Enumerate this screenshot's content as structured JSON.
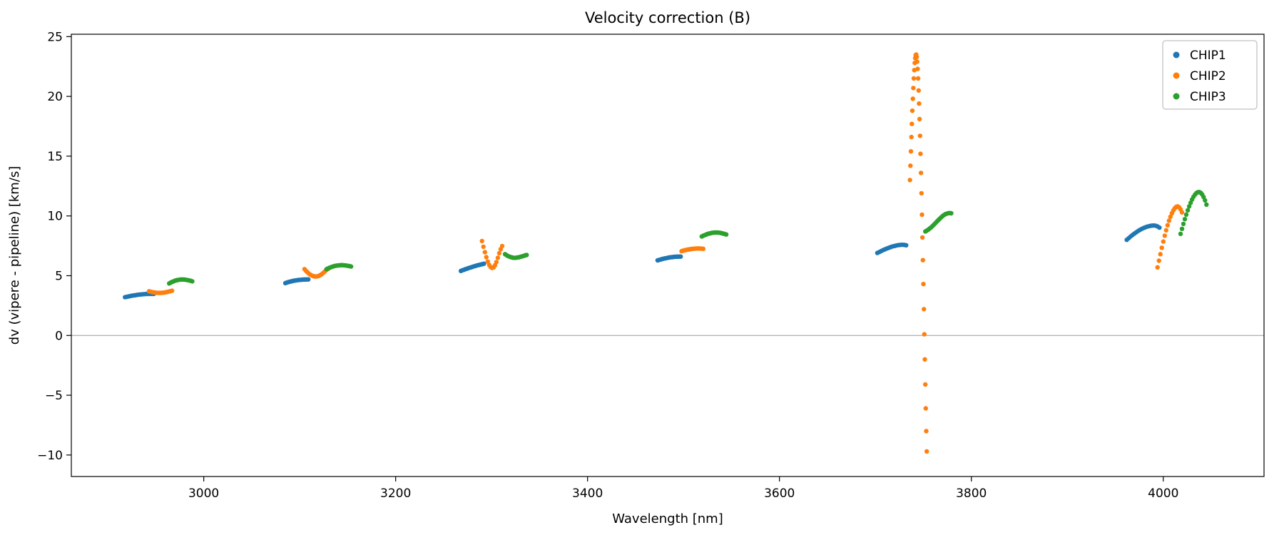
{
  "chart_data": {
    "type": "scatter",
    "title": "Velocity correction (B)",
    "xlabel": "Wavelength [nm]",
    "ylabel": "dv (vipere - pipeline) [km/s]",
    "xlim": [
      2862,
      4105
    ],
    "ylim": [
      -11.8,
      25.2
    ],
    "x_ticks": [
      3000,
      3200,
      3400,
      3600,
      3800,
      4000
    ],
    "y_ticks": [
      -10,
      -5,
      0,
      5,
      10,
      15,
      20,
      25
    ],
    "grid": false,
    "zero_line": 0,
    "zero_line_color": "#9a9a9a",
    "marker_radius": 3.2,
    "legend_position": "upper right",
    "series": [
      {
        "name": "CHIP1",
        "color": "#1f77b4",
        "segments": [
          {
            "x": [
              2918,
              2920,
              2922,
              2924,
              2926,
              2928,
              2930,
              2932,
              2934,
              2936,
              2938,
              2940,
              2942,
              2944,
              2946,
              2948
            ],
            "y": [
              3.2,
              3.24,
              3.27,
              3.31,
              3.34,
              3.36,
              3.39,
              3.41,
              3.43,
              3.44,
              3.46,
              3.47,
              3.47,
              3.48,
              3.48,
              3.48
            ]
          },
          {
            "x": [
              3085,
              3086.5,
              3088,
              3089.5,
              3091,
              3092.5,
              3094,
              3095.5,
              3097,
              3098.5,
              3100,
              3101.5,
              3103,
              3104.5,
              3106,
              3107.5,
              3109
            ],
            "y": [
              4.38,
              4.42,
              4.46,
              4.49,
              4.52,
              4.55,
              4.58,
              4.6,
              4.62,
              4.64,
              4.65,
              4.66,
              4.67,
              4.68,
              4.68,
              4.69,
              4.69
            ]
          },
          {
            "x": [
              3268,
              3269.5,
              3271,
              3272.5,
              3274,
              3275.5,
              3277,
              3278.5,
              3280,
              3281.5,
              3283,
              3284.5,
              3286,
              3287.5,
              3289,
              3290.5,
              3292
            ],
            "y": [
              5.4,
              5.45,
              5.49,
              5.54,
              5.58,
              5.62,
              5.66,
              5.7,
              5.74,
              5.78,
              5.81,
              5.85,
              5.88,
              5.91,
              5.94,
              5.97,
              6.0
            ]
          },
          {
            "x": [
              3473,
              3474.5,
              3476,
              3477.5,
              3479,
              3480.5,
              3482,
              3483.5,
              3485,
              3486.5,
              3488,
              3489.5,
              3491,
              3492.5,
              3494,
              3495.5,
              3497
            ],
            "y": [
              6.28,
              6.32,
              6.35,
              6.39,
              6.42,
              6.45,
              6.47,
              6.5,
              6.52,
              6.54,
              6.55,
              6.57,
              6.58,
              6.59,
              6.59,
              6.6,
              6.6
            ]
          },
          {
            "x": [
              3702,
              3704,
              3706,
              3708,
              3710,
              3712,
              3714,
              3716,
              3718,
              3720,
              3722,
              3724,
              3726,
              3728,
              3730,
              3732
            ],
            "y": [
              6.9,
              6.98,
              7.06,
              7.14,
              7.21,
              7.28,
              7.34,
              7.4,
              7.45,
              7.49,
              7.53,
              7.56,
              7.58,
              7.59,
              7.58,
              7.55
            ]
          },
          {
            "x": [
              3962,
              3964,
              3966,
              3968,
              3970,
              3972,
              3974,
              3976,
              3978,
              3980,
              3982,
              3984,
              3986,
              3988,
              3990,
              3992,
              3994,
              3996
            ],
            "y": [
              8.0,
              8.14,
              8.28,
              8.41,
              8.53,
              8.64,
              8.75,
              8.85,
              8.93,
              9.01,
              9.07,
              9.12,
              9.16,
              9.19,
              9.2,
              9.18,
              9.12,
              9.02
            ]
          }
        ]
      },
      {
        "name": "CHIP2",
        "color": "#ff7f0e",
        "segments": [
          {
            "x": [
              2943,
              2944.5,
              2946,
              2947.5,
              2949,
              2950.5,
              2952,
              2953.5,
              2955,
              2956.5,
              2958,
              2959.5,
              2961,
              2962.5,
              2964,
              2965.5,
              2967
            ],
            "y": [
              3.7,
              3.66,
              3.63,
              3.61,
              3.59,
              3.57,
              3.56,
              3.56,
              3.56,
              3.57,
              3.58,
              3.6,
              3.62,
              3.65,
              3.68,
              3.71,
              3.74
            ]
          },
          {
            "x": [
              3105,
              3106.5,
              3108,
              3109.5,
              3111,
              3112.5,
              3114,
              3115.5,
              3117,
              3118.5,
              3120,
              3121.5,
              3123,
              3124.5,
              3126,
              3127.5,
              3129,
              3130.5
            ],
            "y": [
              5.55,
              5.41,
              5.29,
              5.18,
              5.09,
              5.02,
              4.97,
              4.94,
              4.93,
              4.95,
              4.99,
              5.05,
              5.13,
              5.23,
              5.34,
              5.46,
              5.55,
              5.62
            ]
          },
          {
            "x": [
              3290,
              3291.5,
              3293,
              3294.5,
              3296,
              3297.5,
              3299,
              3300.5,
              3302,
              3303.5,
              3305,
              3306.5,
              3308,
              3309.5,
              3311
            ],
            "y": [
              7.9,
              7.42,
              6.97,
              6.55,
              6.18,
              5.9,
              5.72,
              5.65,
              5.7,
              5.87,
              6.14,
              6.5,
              6.88,
              7.22,
              7.48
            ]
          },
          {
            "x": [
              3498,
              3499.5,
              3501,
              3502.5,
              3504,
              3505.5,
              3507,
              3508.5,
              3510,
              3511.5,
              3513,
              3514.5,
              3516,
              3517.5,
              3519,
              3520.5
            ],
            "y": [
              7.05,
              7.09,
              7.12,
              7.15,
              7.18,
              7.2,
              7.22,
              7.24,
              7.25,
              7.26,
              7.27,
              7.28,
              7.28,
              7.27,
              7.26,
              7.25
            ]
          },
          {
            "x": [
              3736,
              3736.5,
              3737,
              3737.5,
              3738,
              3738.5,
              3739,
              3739.5,
              3740,
              3740.5,
              3741,
              3741.5,
              3742,
              3742.5,
              3743,
              3743.5,
              3744,
              3744.5,
              3745,
              3745.5,
              3746,
              3746.5,
              3747,
              3747.5,
              3748,
              3748.5,
              3749,
              3749.5,
              3750,
              3750.5,
              3751,
              3751.5,
              3752,
              3752.5,
              3753,
              3753.5
            ],
            "y": [
              13.0,
              14.2,
              15.4,
              16.6,
              17.7,
              18.8,
              19.8,
              20.7,
              21.5,
              22.2,
              22.8,
              23.2,
              23.45,
              23.5,
              23.3,
              22.9,
              22.3,
              21.5,
              20.5,
              19.4,
              18.1,
              16.7,
              15.2,
              13.6,
              11.9,
              10.1,
              8.2,
              6.3,
              4.3,
              2.2,
              0.1,
              -2.0,
              -4.1,
              -6.1,
              -8.0,
              -9.7
            ]
          },
          {
            "x": [
              3994,
              3995.5,
              3997,
              3998.5,
              4000,
              4001.5,
              4003,
              4004.5,
              4006,
              4007.5,
              4009,
              4010.5,
              4012,
              4013.5,
              4015,
              4016.5,
              4018,
              4019.5
            ],
            "y": [
              5.7,
              6.25,
              6.8,
              7.34,
              7.86,
              8.35,
              8.8,
              9.22,
              9.6,
              9.93,
              10.22,
              10.46,
              10.64,
              10.76,
              10.8,
              10.72,
              10.55,
              10.3
            ]
          }
        ]
      },
      {
        "name": "CHIP3",
        "color": "#2ca02c",
        "segments": [
          {
            "x": [
              2964,
              2965.5,
              2967,
              2968.5,
              2970,
              2971.5,
              2973,
              2974.5,
              2976,
              2977.5,
              2979,
              2980.5,
              2982,
              2983.5,
              2985,
              2986.5,
              2988
            ],
            "y": [
              4.35,
              4.42,
              4.48,
              4.53,
              4.58,
              4.61,
              4.64,
              4.66,
              4.68,
              4.68,
              4.68,
              4.67,
              4.65,
              4.63,
              4.6,
              4.57,
              4.53
            ]
          },
          {
            "x": [
              3128,
              3129.5,
              3131,
              3132.5,
              3134,
              3135.5,
              3137,
              3138.5,
              3140,
              3141.5,
              3143,
              3144.5,
              3146,
              3147.5,
              3149,
              3150.5,
              3152,
              3153.5
            ],
            "y": [
              5.55,
              5.61,
              5.66,
              5.71,
              5.75,
              5.79,
              5.82,
              5.84,
              5.86,
              5.87,
              5.88,
              5.88,
              5.87,
              5.86,
              5.84,
              5.82,
              5.8,
              5.77
            ]
          },
          {
            "x": [
              3314,
              3315.5,
              3317,
              3318.5,
              3320,
              3321.5,
              3323,
              3324.5,
              3326,
              3327.5,
              3329,
              3330.5,
              3332,
              3333.5,
              3335,
              3336.5
            ],
            "y": [
              6.8,
              6.72,
              6.65,
              6.6,
              6.55,
              6.52,
              6.5,
              6.5,
              6.51,
              6.53,
              6.55,
              6.59,
              6.62,
              6.66,
              6.7,
              6.73
            ]
          },
          {
            "x": [
              3519,
              3520.5,
              3522,
              3523.5,
              3525,
              3526.5,
              3528,
              3529.5,
              3531,
              3532.5,
              3534,
              3535.5,
              3537,
              3538.5,
              3540,
              3541.5,
              3543,
              3544.5
            ],
            "y": [
              8.28,
              8.34,
              8.39,
              8.44,
              8.49,
              8.52,
              8.55,
              8.58,
              8.6,
              8.61,
              8.61,
              8.61,
              8.6,
              8.58,
              8.55,
              8.52,
              8.49,
              8.45
            ]
          },
          {
            "x": [
              3752,
              3753.5,
              3755,
              3756.5,
              3758,
              3759.5,
              3761,
              3762.5,
              3764,
              3765.5,
              3767,
              3768.5,
              3770,
              3771.5,
              3773,
              3774.5,
              3776,
              3777.5,
              3779
            ],
            "y": [
              8.7,
              8.77,
              8.85,
              8.94,
              9.04,
              9.15,
              9.27,
              9.39,
              9.52,
              9.64,
              9.76,
              9.88,
              9.99,
              10.08,
              10.15,
              10.2,
              10.23,
              10.24,
              10.22
            ]
          },
          {
            "x": [
              4018,
              4019.5,
              4021,
              4022.5,
              4024,
              4025.5,
              4027,
              4028.5,
              4030,
              4031.5,
              4033,
              4034.5,
              4036,
              4037.5,
              4039,
              4040.5,
              4042,
              4043.5,
              4045
            ],
            "y": [
              8.5,
              8.92,
              9.33,
              9.73,
              10.11,
              10.47,
              10.8,
              11.1,
              11.37,
              11.6,
              11.78,
              11.91,
              11.99,
              12.0,
              11.94,
              11.8,
              11.58,
              11.3,
              10.95
            ]
          }
        ]
      }
    ]
  }
}
